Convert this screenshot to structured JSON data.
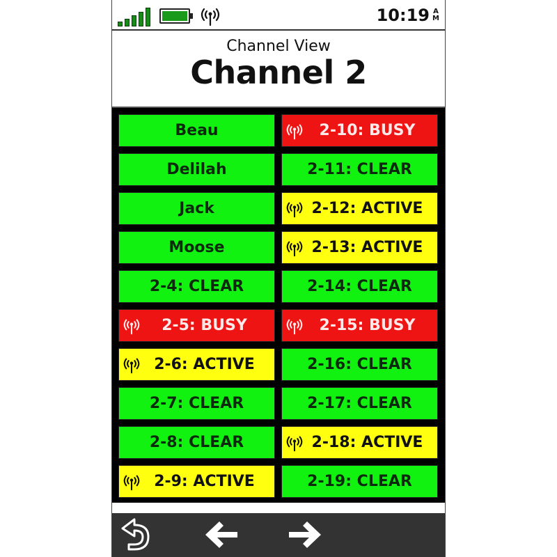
{
  "status_bar": {
    "time": "10:19",
    "ampm": [
      "A",
      "M"
    ],
    "signal_icon": "signal-bars-icon",
    "battery_icon": "battery-icon",
    "radio_icon": "antenna-icon"
  },
  "header": {
    "subtitle": "Channel View",
    "title": "Channel 2"
  },
  "colors": {
    "clear": "#11f211",
    "busy": "#ee1414",
    "active": "#ffff10"
  },
  "channels": [
    {
      "label": "Beau",
      "state": "clear",
      "icon": false
    },
    {
      "label": "2-10: BUSY",
      "state": "busy",
      "icon": true
    },
    {
      "label": "Delilah",
      "state": "clear",
      "icon": false
    },
    {
      "label": "2-11: CLEAR",
      "state": "clear",
      "icon": false
    },
    {
      "label": "Jack",
      "state": "clear",
      "icon": false
    },
    {
      "label": "2-12: ACTIVE",
      "state": "active",
      "icon": true
    },
    {
      "label": "Moose",
      "state": "clear",
      "icon": false
    },
    {
      "label": "2-13: ACTIVE",
      "state": "active",
      "icon": true
    },
    {
      "label": "2-4: CLEAR",
      "state": "clear",
      "icon": false
    },
    {
      "label": "2-14: CLEAR",
      "state": "clear",
      "icon": false
    },
    {
      "label": "2-5: BUSY",
      "state": "busy",
      "icon": true
    },
    {
      "label": "2-15: BUSY",
      "state": "busy",
      "icon": true
    },
    {
      "label": "2-6: ACTIVE",
      "state": "active",
      "icon": true
    },
    {
      "label": "2-16: CLEAR",
      "state": "clear",
      "icon": false
    },
    {
      "label": "2-7: CLEAR",
      "state": "clear",
      "icon": false
    },
    {
      "label": "2-17: CLEAR",
      "state": "clear",
      "icon": false
    },
    {
      "label": "2-8: CLEAR",
      "state": "clear",
      "icon": false
    },
    {
      "label": "2-18: ACTIVE",
      "state": "active",
      "icon": true
    },
    {
      "label": "2-9: ACTIVE",
      "state": "active",
      "icon": true
    },
    {
      "label": "2-19: CLEAR",
      "state": "clear",
      "icon": false
    }
  ],
  "nav": {
    "back_icon": "back-icon",
    "prev_icon": "arrow-left-icon",
    "next_icon": "arrow-right-icon"
  }
}
